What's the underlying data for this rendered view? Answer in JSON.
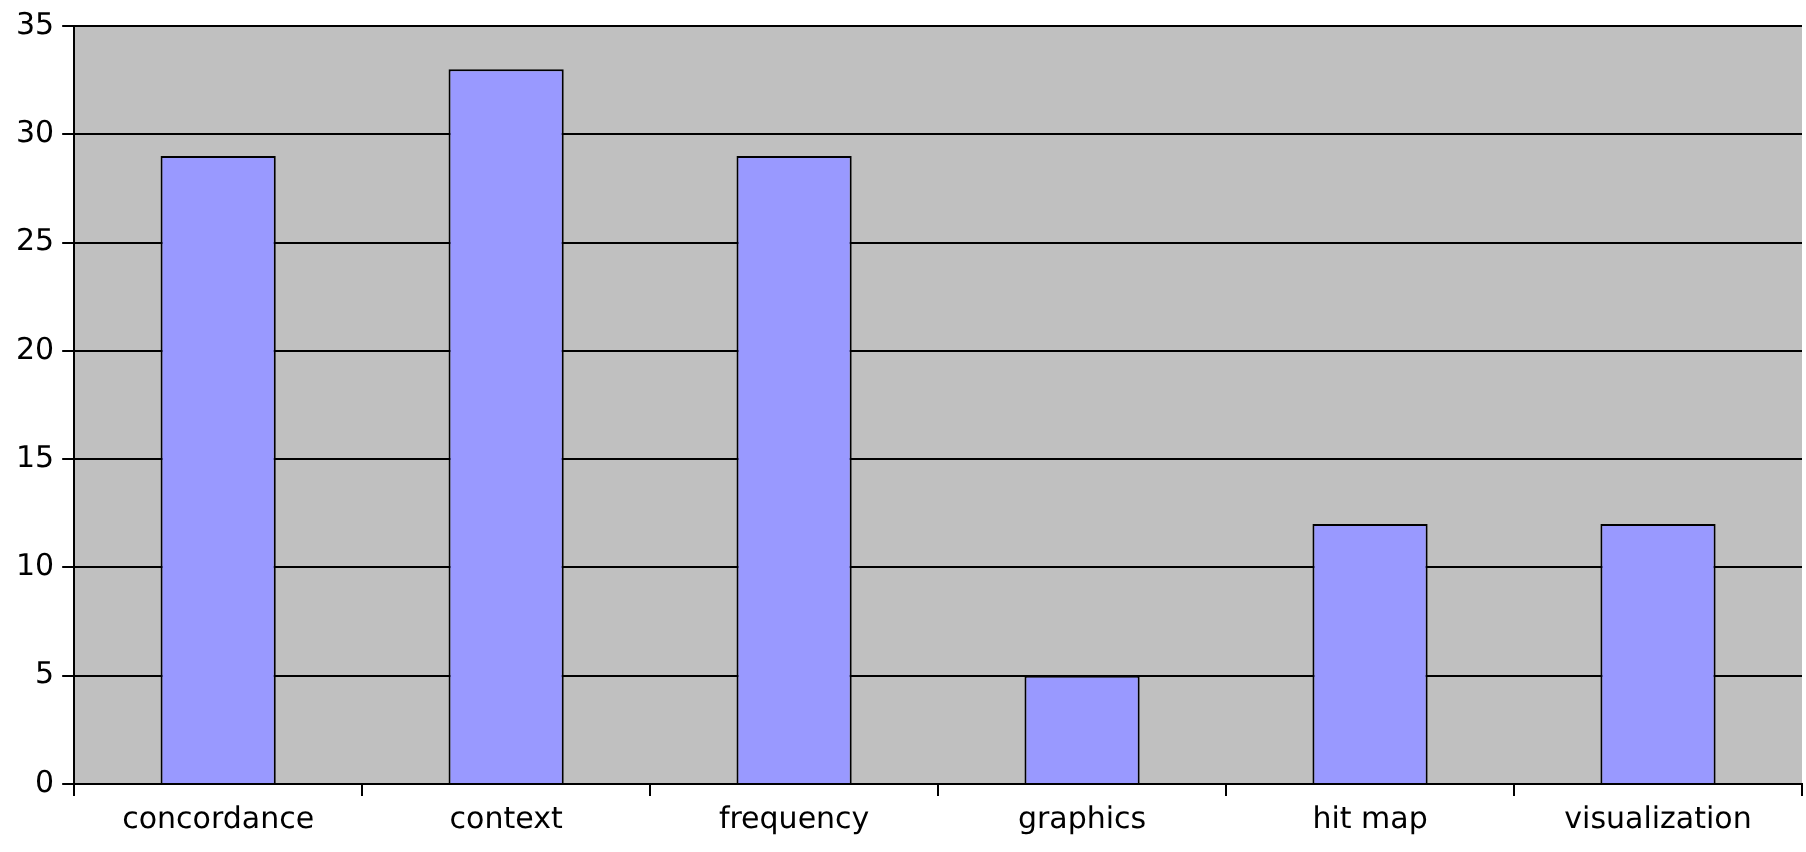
{
  "chart_data": {
    "type": "bar",
    "categories": [
      "concordance",
      "context",
      "frequency",
      "graphics",
      "hit map",
      "visualization"
    ],
    "values": [
      29,
      33,
      29,
      5,
      12,
      12
    ],
    "color": "#9999ff",
    "ylim": [
      0,
      35
    ],
    "yticks": [
      0,
      5,
      10,
      15,
      20,
      25,
      30,
      35
    ],
    "grid": "y",
    "legend": false
  }
}
